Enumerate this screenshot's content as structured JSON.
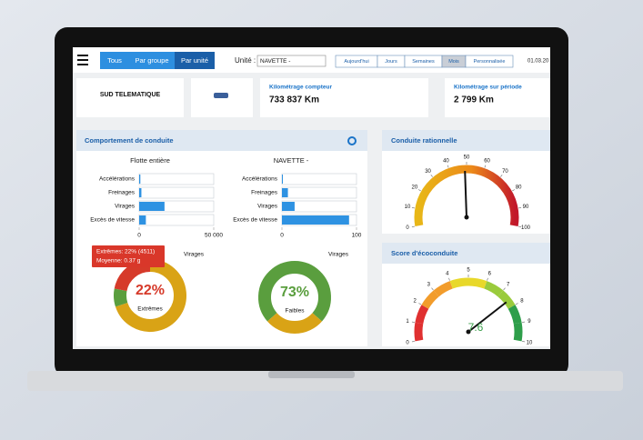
{
  "toolbar": {
    "tabs": [
      "Tous",
      "Par groupe",
      "Par unité"
    ],
    "active_tab": 2,
    "unit_label": "Unité :",
    "unit_value": "NAVETTE -",
    "periods": [
      "Aujourd'hui",
      "Jours",
      "Semaines",
      "Mois",
      "Personnalisée"
    ],
    "active_period": 3,
    "date": "01.03.20"
  },
  "cards": [
    {
      "title": "SUD TELEMATIQUE"
    },
    {
      "label": "Kilométrage compteur",
      "value": "733 837 Km"
    },
    {
      "label": "Kilométrage sur période",
      "value": "2 799 Km"
    }
  ],
  "behaviour": {
    "title": "Comportement de conduite",
    "charts": [
      {
        "title": "Flotte entière",
        "categories": [
          "Accélérations",
          "Freinages",
          "Virages",
          "Excès de vitesse"
        ],
        "values": [
          800,
          1500,
          17000,
          4500
        ],
        "xlim": [
          0,
          50000
        ],
        "xticks": [
          0,
          {
            "value": 50000,
            "label": "50 000"
          }
        ]
      },
      {
        "title": "NAVETTE -",
        "categories": [
          "Accélérations",
          "Freinages",
          "Virages",
          "Excès de vitesse"
        ],
        "values": [
          0,
          8,
          17,
          90
        ],
        "xlim": [
          0,
          100
        ],
        "xticks": [
          0,
          100
        ]
      }
    ],
    "donuts": [
      {
        "title": "Virages",
        "values": [
          22,
          70,
          8
        ],
        "colors": [
          "#d63a2a",
          "#d9a316",
          "#5a9e3e"
        ],
        "center_label": "22%",
        "center_caption": "Extrêmes",
        "tooltip": [
          "Extrêmes: 22% (4511)",
          "Moyenne: 0.37 g"
        ]
      },
      {
        "title": "Virages",
        "values": [
          73,
          27
        ],
        "colors": [
          "#5a9e3e",
          "#d9a316"
        ],
        "center_label": "73%",
        "center_caption": "Faibles"
      }
    ]
  },
  "gauges": [
    {
      "title": "Conduite rationnelle",
      "lim": [
        0,
        100
      ],
      "ticks": [
        0,
        10,
        20,
        30,
        40,
        50,
        60,
        70,
        80,
        90,
        100
      ],
      "value": 49
    },
    {
      "title": "Score d'écoconduite",
      "lim": [
        0,
        10
      ],
      "ticks": [
        0,
        1,
        2,
        3,
        4,
        5,
        6,
        7,
        8,
        9,
        10
      ],
      "value": 7.6
    }
  ]
}
